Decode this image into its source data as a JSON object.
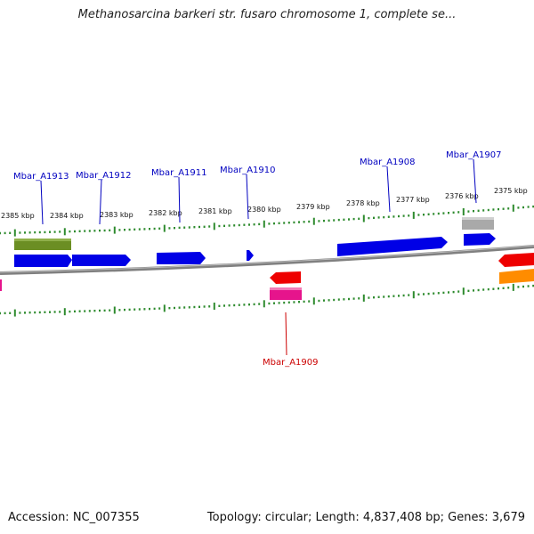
{
  "title": "Methanosarcina barkeri str. fusaro chromosome 1, complete se...",
  "accession_line": "Accession: NC_007355",
  "summary_line": "Topology: circular; Length: 4,837,408 bp; Genes: 3,679",
  "colors": {
    "backbone": "#808080",
    "tick": "#2e8b2e",
    "forward_gene": "#0000e6",
    "label_forward": "#0000c0",
    "label_reverse": "#cc0000",
    "olive": "#6b8e23",
    "red": "#ee0000",
    "pink": "#e6148c",
    "orange": "#ff8c00",
    "gray": "#a9a9a9"
  },
  "tick_labels": [
    "2385 kbp",
    "2384 kbp",
    "2383 kbp",
    "2382 kbp",
    "2381 kbp",
    "2380 kbp",
    "2379 kbp",
    "2378 kbp",
    "2377 kbp",
    "2376 kbp",
    "2375 kbp"
  ],
  "gene_labels": {
    "a1913": "Mbar_A1913",
    "a1912": "Mbar_A1912",
    "a1911": "Mbar_A1911",
    "a1910": "Mbar_A1910",
    "a1908": "Mbar_A1908",
    "a1907": "Mbar_A1907",
    "a1909": "Mbar_A1909"
  }
}
